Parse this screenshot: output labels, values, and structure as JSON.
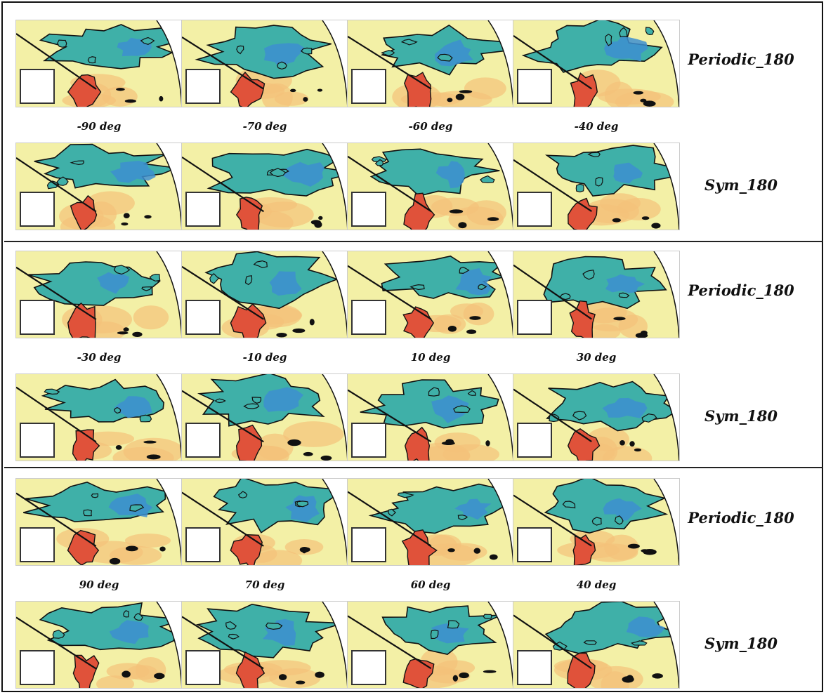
{
  "groups": [
    {
      "angles": [
        "-90 deg",
        "-70 deg",
        "-60 deg",
        "-40 deg"
      ],
      "rows": [
        {
          "label": "Periodic_180"
        },
        {
          "label": "Sym_180"
        }
      ]
    },
    {
      "angles": [
        "-30 deg",
        "-10 deg",
        "10 deg",
        "30 deg"
      ],
      "rows": [
        {
          "label": "Periodic_180"
        },
        {
          "label": "Sym_180"
        }
      ]
    },
    {
      "angles": [
        "90 deg",
        "70 deg",
        "60 deg",
        "40 deg"
      ],
      "rows": [
        {
          "label": "Periodic_180"
        },
        {
          "label": "Sym_180"
        }
      ]
    }
  ],
  "colors": {
    "background_map": "#f3f0a6",
    "teal_region": "#3fb0a8",
    "blue_core": "#3d8fd0",
    "red_region": "#e0523a",
    "orange_tint": "#f4c27a",
    "contour": "#111111"
  }
}
